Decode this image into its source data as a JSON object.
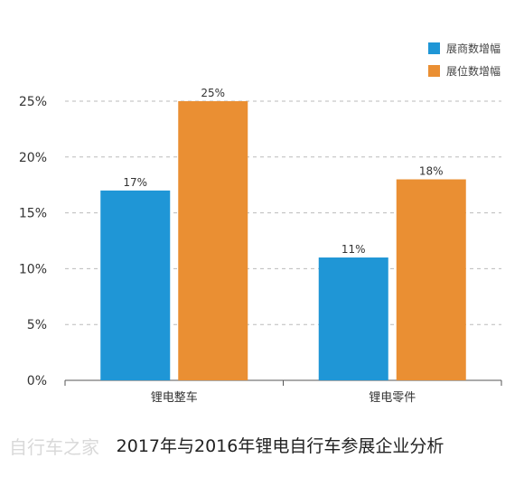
{
  "chart_data": {
    "type": "bar",
    "title": "2017年与2016年锂电自行车参展企业分析",
    "categories": [
      "锂电整车",
      "锂电零件"
    ],
    "series": [
      {
        "name": "展商数增幅",
        "values": [
          17,
          11
        ],
        "labels": [
          "17%",
          "11%"
        ],
        "color": "#1f96d6"
      },
      {
        "name": "展位数增幅",
        "values": [
          25,
          18
        ],
        "labels": [
          "25%",
          "18%"
        ],
        "color": "#ea8f33"
      }
    ],
    "ylim": [
      0,
      25
    ],
    "yticks": [
      0,
      5,
      10,
      15,
      20,
      25
    ],
    "ytick_labels": [
      "0%",
      "5%",
      "10%",
      "15%",
      "20%",
      "25%"
    ],
    "grid": true,
    "legend": "top-right",
    "xlabel": "",
    "ylabel": ""
  },
  "watermark": "自行车之家"
}
